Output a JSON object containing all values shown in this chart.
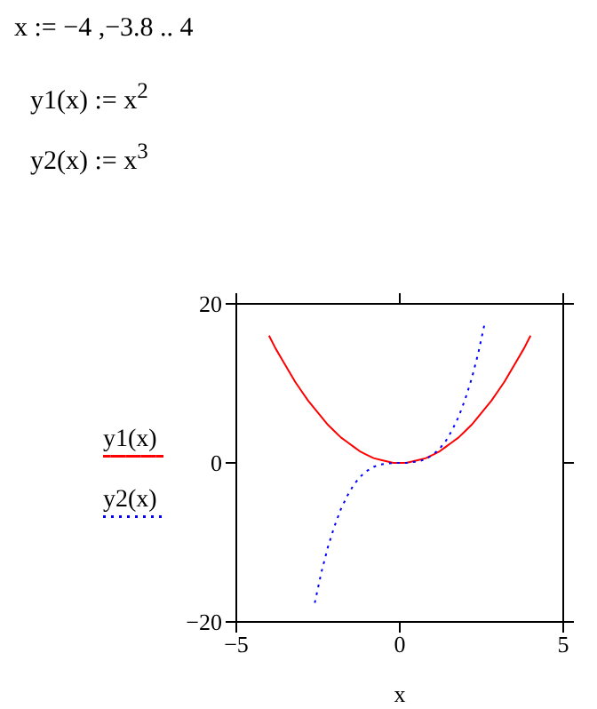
{
  "chart_data": {
    "type": "line",
    "xlabel": "x",
    "annotations": [
      "x := −4 ,−3.8 .. 4",
      "y1(x) := x$^{2}$",
      "y2(x) := x$^{3}$"
    ],
    "x": [
      -4,
      -3.8,
      -3.6,
      -3.4,
      -3.2,
      -3,
      -2.8,
      -2.6,
      -2.4,
      -2.2,
      -2,
      -1.8,
      -1.6,
      -1.4,
      -1.2,
      -1,
      -0.8,
      -0.6,
      -0.4,
      -0.2,
      0,
      0.2,
      0.4,
      0.6,
      0.8,
      1,
      1.2,
      1.4,
      1.6,
      1.8,
      2,
      2.2,
      2.4,
      2.6,
      2.8,
      3,
      3.2,
      3.4,
      3.6,
      3.8,
      4
    ],
    "series": [
      {
        "name": "y1(x)",
        "color": "#ff0000",
        "line_style": "solid",
        "values": [
          16,
          14.4,
          13,
          11.6,
          10.2,
          9,
          7.8,
          6.8,
          5.8,
          4.8,
          4,
          3.2,
          2.6,
          2,
          1.4,
          1,
          0.6,
          0.4,
          0.2,
          0,
          0,
          0,
          0.2,
          0.4,
          0.6,
          1,
          1.4,
          2,
          2.6,
          3.2,
          4,
          4.8,
          5.8,
          6.8,
          7.8,
          9,
          10.2,
          11.6,
          13,
          14.4,
          16
        ]
      },
      {
        "name": "y2(x)",
        "color": "#0000ff",
        "line_style": "dotted",
        "x": [
          -2.6,
          -2.4,
          -2.2,
          -2,
          -1.8,
          -1.6,
          -1.4,
          -1.2,
          -1,
          -0.8,
          -0.6,
          -0.4,
          -0.2,
          0,
          0.2,
          0.4,
          0.6,
          0.8,
          1,
          1.2,
          1.4,
          1.6,
          1.8,
          2,
          2.2,
          2.4,
          2.6
        ],
        "values": [
          -17.6,
          -13.8,
          -10.6,
          -8,
          -5.8,
          -4.1,
          -2.7,
          -1.7,
          -1,
          -0.5,
          -0.2,
          -0.1,
          0,
          0,
          0,
          0.1,
          0.2,
          0.5,
          1,
          1.7,
          2.7,
          4.1,
          5.8,
          8,
          10.6,
          13.8,
          17.6
        ]
      }
    ],
    "xlim": [
      -5,
      5
    ],
    "xticks": [
      -5,
      0,
      5
    ],
    "ylim": [
      -20,
      20
    ],
    "yticks": [
      -20,
      0,
      20
    ],
    "legend": "left",
    "marker": "none"
  }
}
